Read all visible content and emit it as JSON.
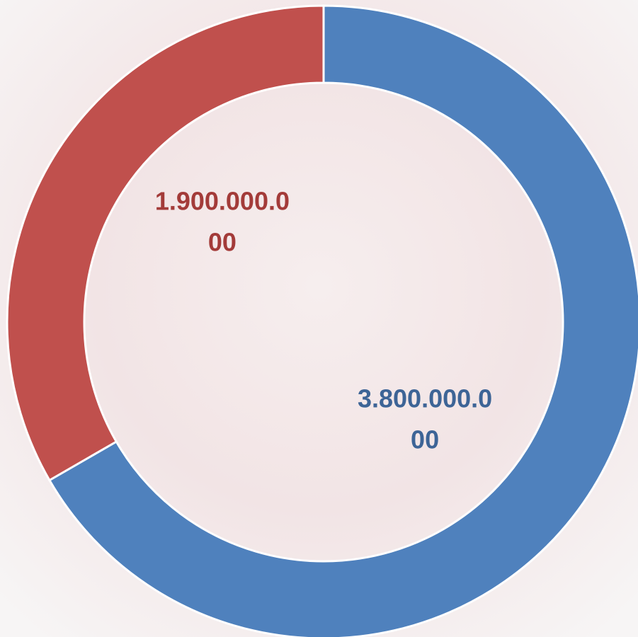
{
  "chart_data": {
    "type": "donut",
    "categories": [
      null,
      null
    ],
    "values": [
      3800000000,
      1900000000
    ],
    "value_labels": [
      "3.800.000.000",
      "1.900.000.000"
    ],
    "colors": [
      "#4f81bd",
      "#c0504d"
    ],
    "label_colors": [
      "#3d6496",
      "#a33b39"
    ]
  }
}
